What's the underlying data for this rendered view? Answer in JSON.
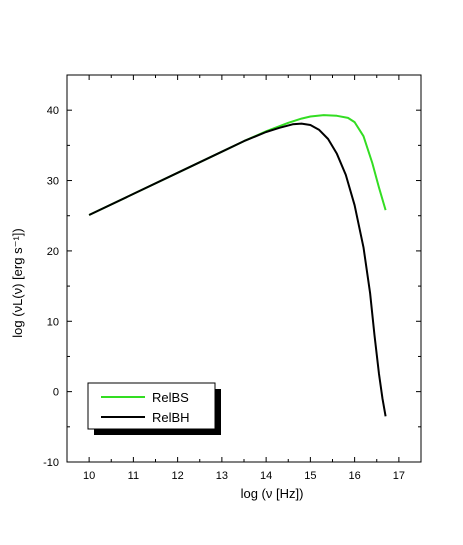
{
  "chart_data": {
    "type": "line",
    "title": "",
    "xlabel": "log (ν [Hz])",
    "ylabel": "log (νL(ν) [erg s⁻¹])",
    "xlim": [
      9.5,
      17.5
    ],
    "ylim": [
      -10,
      45
    ],
    "xticks": [
      10,
      11,
      12,
      13,
      14,
      15,
      16,
      17
    ],
    "yticks": [
      -10,
      0,
      10,
      20,
      30,
      40
    ],
    "grid": false,
    "legend_position": "bottom-left",
    "series": [
      {
        "name": "RelBS",
        "color": "#33dd22",
        "x": [
          10.0,
          11.0,
          12.0,
          13.0,
          13.5,
          14.0,
          14.5,
          14.8,
          15.0,
          15.3,
          15.6,
          15.85,
          16.0,
          16.2,
          16.4,
          16.55,
          16.7
        ],
        "y": [
          25.1,
          28.1,
          31.1,
          34.1,
          35.6,
          37.0,
          38.2,
          38.8,
          39.1,
          39.3,
          39.2,
          38.9,
          38.3,
          36.3,
          32.5,
          29.0,
          25.8
        ]
      },
      {
        "name": "RelBH",
        "color": "#000000",
        "x": [
          10.0,
          11.0,
          12.0,
          13.0,
          13.5,
          14.0,
          14.3,
          14.6,
          14.8,
          15.0,
          15.2,
          15.4,
          15.6,
          15.8,
          16.0,
          16.2,
          16.35,
          16.45,
          16.55,
          16.63,
          16.7
        ],
        "y": [
          25.1,
          28.1,
          31.1,
          34.1,
          35.6,
          36.9,
          37.5,
          38.0,
          38.1,
          37.9,
          37.2,
          35.9,
          33.8,
          30.8,
          26.5,
          20.5,
          14.0,
          8.0,
          2.5,
          -1.0,
          -3.5
        ]
      }
    ]
  }
}
